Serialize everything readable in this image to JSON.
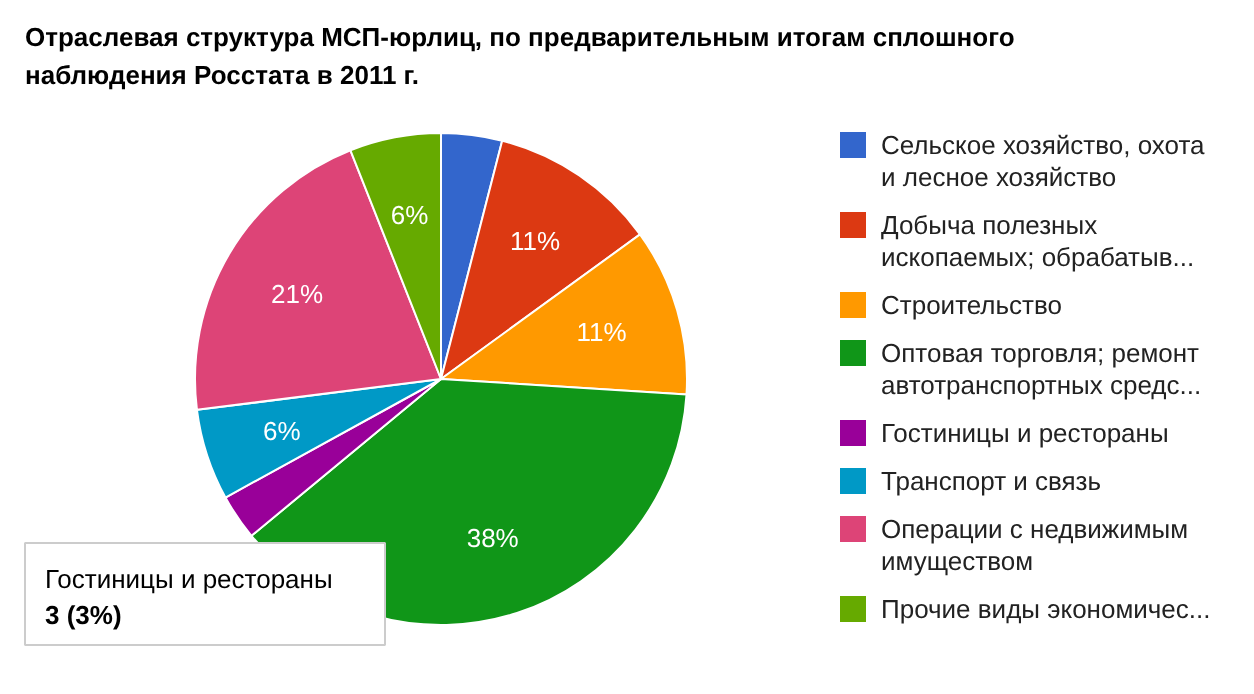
{
  "chart_data": {
    "type": "pie",
    "title": "Отраслевая структура МСП-юрлиц, по предварительным итогам сплошного наблюдения Росстата в 2011 г.",
    "categories": [
      "Сельское хозяйство, охота и лесное хозяйство",
      "Добыча полезных ископаемых; обрабатыв...",
      "Строительство",
      "Оптовая торговля; ремонт автотранспортных средс...",
      "Гостиницы и рестораны",
      "Транспорт и связь",
      "Операции с недвижимым имуществом",
      "Прочие виды экономичес..."
    ],
    "values": [
      4,
      11,
      11,
      38,
      3,
      6,
      21,
      6
    ],
    "value_labels": [
      null,
      "11%",
      "11%",
      "38%",
      null,
      "6%",
      "21%",
      "6%"
    ],
    "colors": [
      "#3366cc",
      "#dc3912",
      "#ff9900",
      "#109618",
      "#990099",
      "#0099c6",
      "#dd4477",
      "#66aa00"
    ],
    "legend": "right",
    "annotations": [
      "Гостиницы и рестораны\n3 (3%)"
    ]
  }
}
